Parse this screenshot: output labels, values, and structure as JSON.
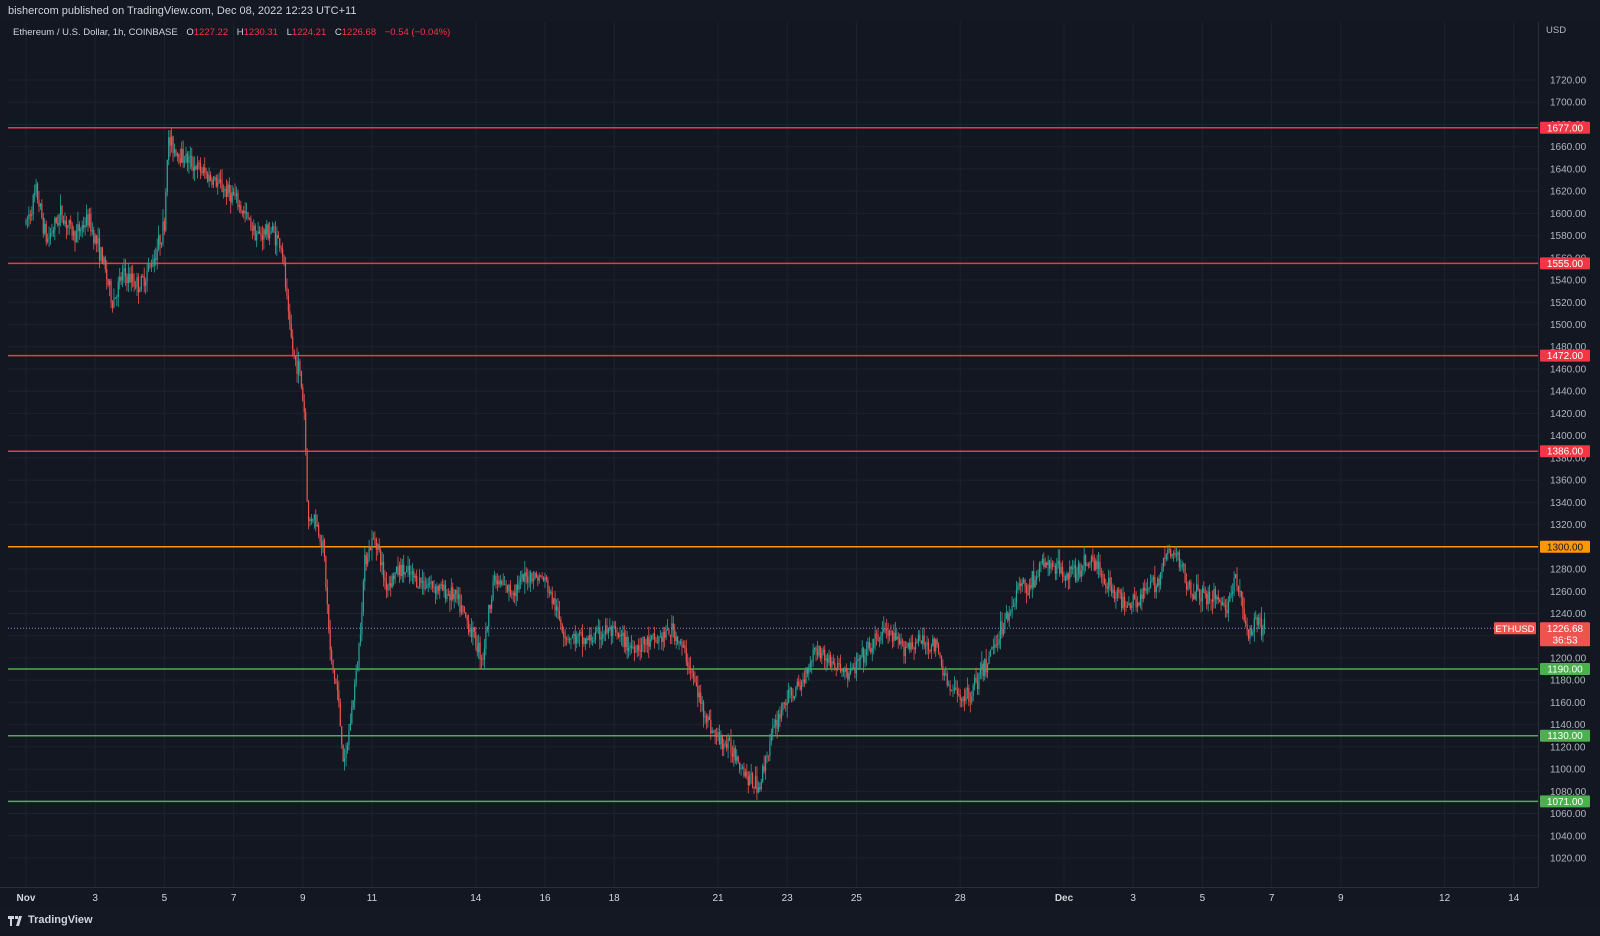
{
  "header": {
    "published": "bishercom published on TradingView.com, Dec 08, 2022 12:23 UTC+11"
  },
  "legend": {
    "symbol": "Ethereum / U.S. Dollar, 1h, COINBASE",
    "o_label": "O",
    "o": "1227.22",
    "h_label": "H",
    "h": "1230.31",
    "l_label": "L",
    "l": "1224.21",
    "c_label": "C",
    "c": "1226.68",
    "change": "−0.54 (−0.04%)"
  },
  "footer": {
    "brand": "TradingView"
  },
  "colors": {
    "background": "#131722",
    "grid": "#1e222d",
    "up": "#26a69a",
    "down": "#ef5350",
    "resistance": "#f23645",
    "orange": "#ff9800",
    "support": "#4caf50",
    "text": "#b2b5be"
  },
  "chart_data": {
    "type": "candlestick",
    "symbol": "ETHUSD",
    "timeframe": "1h",
    "exchange": "COINBASE",
    "currency": "USD",
    "y_axis_ticks": [
      1020,
      1040,
      1060,
      1080,
      1100,
      1120,
      1140,
      1160,
      1180,
      1200,
      1220,
      1240,
      1260,
      1280,
      1300,
      1320,
      1340,
      1360,
      1380,
      1400,
      1420,
      1440,
      1460,
      1480,
      1500,
      1520,
      1540,
      1560,
      1580,
      1600,
      1620,
      1640,
      1660,
      1680,
      1700,
      1720
    ],
    "ylim": [
      1009,
      1745
    ],
    "x_axis_labels": [
      "Nov",
      "3",
      "5",
      "7",
      "9",
      "11",
      "14",
      "16",
      "18",
      "21",
      "23",
      "25",
      "28",
      "Dec",
      "3",
      "5",
      "7",
      "9",
      "12",
      "14"
    ],
    "horizontal_levels": [
      {
        "value": 1677.0,
        "label": "1677.00",
        "kind": "resistance"
      },
      {
        "value": 1555.0,
        "label": "1555.00",
        "kind": "resistance"
      },
      {
        "value": 1472.0,
        "label": "1472.00",
        "kind": "resistance"
      },
      {
        "value": 1386.0,
        "label": "1386.00",
        "kind": "resistance"
      },
      {
        "value": 1300.0,
        "label": "1300.00",
        "kind": "orange"
      },
      {
        "value": 1190.0,
        "label": "1190.00",
        "kind": "support"
      },
      {
        "value": 1130.0,
        "label": "1130.00",
        "kind": "support"
      },
      {
        "value": 1071.0,
        "label": "1071.00",
        "kind": "support"
      }
    ],
    "last_price": {
      "value": 1226.68,
      "label": "1226.68",
      "countdown": "36:53",
      "tag": "ETHUSD"
    },
    "price_path_anchors": [
      {
        "d": 0.0,
        "p": 1590
      },
      {
        "d": 0.3,
        "p": 1620
      },
      {
        "d": 0.6,
        "p": 1575
      },
      {
        "d": 1.0,
        "p": 1600
      },
      {
        "d": 1.4,
        "p": 1580
      },
      {
        "d": 1.8,
        "p": 1595
      },
      {
        "d": 2.2,
        "p": 1560
      },
      {
        "d": 2.5,
        "p": 1520
      },
      {
        "d": 2.8,
        "p": 1545
      },
      {
        "d": 3.3,
        "p": 1535
      },
      {
        "d": 3.7,
        "p": 1560
      },
      {
        "d": 4.0,
        "p": 1590
      },
      {
        "d": 4.1,
        "p": 1665
      },
      {
        "d": 4.4,
        "p": 1655
      },
      {
        "d": 5.0,
        "p": 1640
      },
      {
        "d": 5.6,
        "p": 1625
      },
      {
        "d": 6.0,
        "p": 1615
      },
      {
        "d": 6.3,
        "p": 1600
      },
      {
        "d": 6.7,
        "p": 1580
      },
      {
        "d": 7.1,
        "p": 1585
      },
      {
        "d": 7.4,
        "p": 1570
      },
      {
        "d": 7.6,
        "p": 1500
      },
      {
        "d": 7.75,
        "p": 1470
      },
      {
        "d": 7.9,
        "p": 1460
      },
      {
        "d": 8.05,
        "p": 1420
      },
      {
        "d": 8.15,
        "p": 1320
      },
      {
        "d": 8.3,
        "p": 1330
      },
      {
        "d": 8.6,
        "p": 1300
      },
      {
        "d": 8.8,
        "p": 1200
      },
      {
        "d": 9.0,
        "p": 1170
      },
      {
        "d": 9.2,
        "p": 1100
      },
      {
        "d": 9.4,
        "p": 1150
      },
      {
        "d": 9.6,
        "p": 1200
      },
      {
        "d": 9.8,
        "p": 1290
      },
      {
        "d": 10.1,
        "p": 1310
      },
      {
        "d": 10.4,
        "p": 1265
      },
      {
        "d": 10.8,
        "p": 1280
      },
      {
        "d": 11.3,
        "p": 1270
      },
      {
        "d": 11.8,
        "p": 1265
      },
      {
        "d": 12.4,
        "p": 1255
      },
      {
        "d": 12.8,
        "p": 1230
      },
      {
        "d": 13.2,
        "p": 1200
      },
      {
        "d": 13.5,
        "p": 1270
      },
      {
        "d": 14.0,
        "p": 1260
      },
      {
        "d": 14.6,
        "p": 1275
      },
      {
        "d": 15.0,
        "p": 1270
      },
      {
        "d": 15.6,
        "p": 1220
      },
      {
        "d": 16.2,
        "p": 1215
      },
      {
        "d": 16.8,
        "p": 1225
      },
      {
        "d": 17.5,
        "p": 1210
      },
      {
        "d": 18.2,
        "p": 1215
      },
      {
        "d": 18.7,
        "p": 1225
      },
      {
        "d": 19.1,
        "p": 1200
      },
      {
        "d": 19.5,
        "p": 1160
      },
      {
        "d": 19.9,
        "p": 1130
      },
      {
        "d": 20.5,
        "p": 1115
      },
      {
        "d": 20.9,
        "p": 1090
      },
      {
        "d": 21.2,
        "p": 1085
      },
      {
        "d": 21.5,
        "p": 1125
      },
      {
        "d": 21.9,
        "p": 1160
      },
      {
        "d": 22.4,
        "p": 1175
      },
      {
        "d": 22.8,
        "p": 1210
      },
      {
        "d": 23.3,
        "p": 1195
      },
      {
        "d": 23.8,
        "p": 1185
      },
      {
        "d": 24.3,
        "p": 1205
      },
      {
        "d": 24.8,
        "p": 1225
      },
      {
        "d": 25.3,
        "p": 1210
      },
      {
        "d": 25.8,
        "p": 1215
      },
      {
        "d": 26.3,
        "p": 1210
      },
      {
        "d": 26.7,
        "p": 1170
      },
      {
        "d": 27.2,
        "p": 1165
      },
      {
        "d": 27.7,
        "p": 1190
      },
      {
        "d": 28.0,
        "p": 1215
      },
      {
        "d": 28.4,
        "p": 1240
      },
      {
        "d": 28.7,
        "p": 1265
      },
      {
        "d": 29.0,
        "p": 1265
      },
      {
        "d": 29.4,
        "p": 1285
      },
      {
        "d": 29.8,
        "p": 1280
      },
      {
        "d": 30.3,
        "p": 1275
      },
      {
        "d": 30.8,
        "p": 1290
      },
      {
        "d": 31.2,
        "p": 1270
      },
      {
        "d": 31.7,
        "p": 1250
      },
      {
        "d": 32.2,
        "p": 1255
      },
      {
        "d": 32.7,
        "p": 1270
      },
      {
        "d": 33.0,
        "p": 1295
      },
      {
        "d": 33.3,
        "p": 1290
      },
      {
        "d": 33.6,
        "p": 1265
      },
      {
        "d": 34.0,
        "p": 1255
      },
      {
        "d": 34.4,
        "p": 1255
      },
      {
        "d": 34.7,
        "p": 1245
      },
      {
        "d": 34.95,
        "p": 1270
      },
      {
        "d": 35.15,
        "p": 1250
      },
      {
        "d": 35.3,
        "p": 1220
      },
      {
        "d": 35.6,
        "p": 1230
      },
      {
        "d": 35.8,
        "p": 1226.68
      }
    ]
  }
}
